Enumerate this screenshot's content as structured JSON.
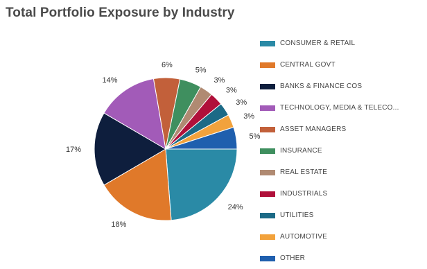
{
  "chart_data": {
    "type": "pie",
    "title": "Total Portfolio Exposure by Industry",
    "slices": [
      {
        "label": "CONSUMER & RETAIL",
        "value": 24,
        "value_label": "24%",
        "color": "#2a8aa6"
      },
      {
        "label": "CENTRAL GOVT",
        "value": 18,
        "value_label": "18%",
        "color": "#e0792a"
      },
      {
        "label": "BANKS & FINANCE COS",
        "value": 17,
        "value_label": "17%",
        "color": "#0e1e3d"
      },
      {
        "label": "TECHNOLOGY, MEDIA & TELECO...",
        "value": 14,
        "value_label": "14%",
        "color": "#a25bb8"
      },
      {
        "label": "ASSET MANAGERS",
        "value": 6,
        "value_label": "6%",
        "color": "#c2603a"
      },
      {
        "label": "INSURANCE",
        "value": 5,
        "value_label": "5%",
        "color": "#3f8f5f"
      },
      {
        "label": "REAL ESTATE",
        "value": 3,
        "value_label": "3%",
        "color": "#b08a72"
      },
      {
        "label": "INDUSTRIALS",
        "value": 3,
        "value_label": "3%",
        "color": "#b0103a"
      },
      {
        "label": "UTILITIES",
        "value": 3,
        "value_label": "3%",
        "color": "#1c6a86"
      },
      {
        "label": "AUTOMOTIVE",
        "value": 3,
        "value_label": "3%",
        "color": "#f2a23c"
      },
      {
        "label": "OTHER",
        "value": 5,
        "value_label": "5%",
        "color": "#1f5fae"
      }
    ],
    "legend_position": "right"
  }
}
